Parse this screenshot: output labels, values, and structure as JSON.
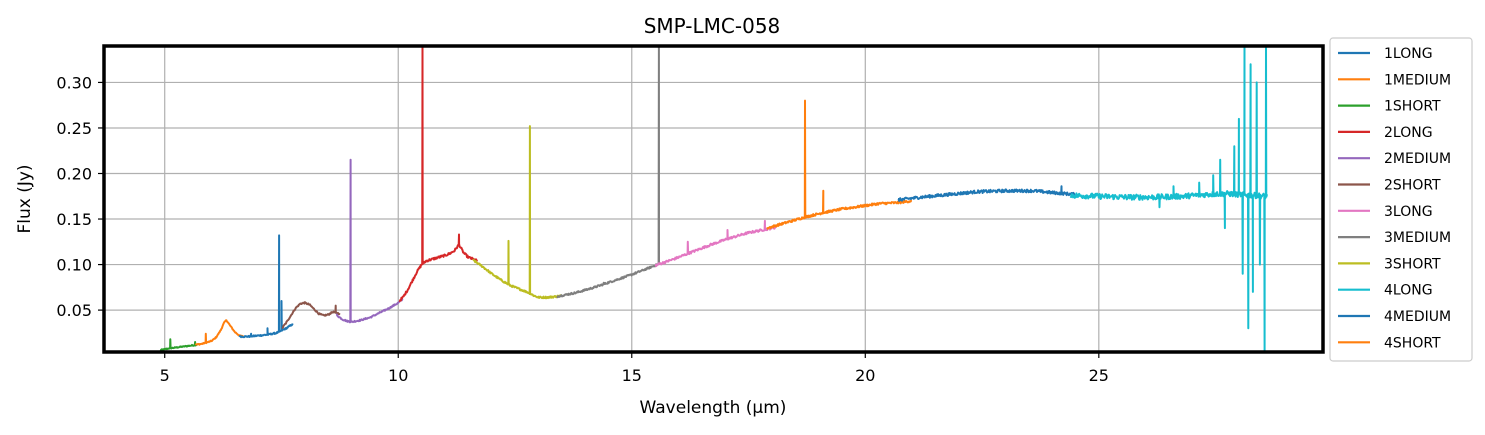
{
  "chart_data": {
    "type": "line",
    "title": "SMP-LMC-058",
    "xlabel": "Wavelength (μm)",
    "ylabel": "Flux (Jy)",
    "xlim": [
      3.7,
      29.8
    ],
    "ylim": [
      0.004,
      0.34
    ],
    "xticks": [
      5,
      10,
      15,
      20,
      25
    ],
    "yticks": [
      0.05,
      0.1,
      0.15,
      0.2,
      0.25,
      0.3
    ],
    "xtick_labels": [
      "5",
      "10",
      "15",
      "20",
      "25"
    ],
    "ytick_labels": [
      "0.05",
      "0.10",
      "0.15",
      "0.20",
      "0.25",
      "0.30"
    ],
    "grid": true,
    "legend_position": "outside-right",
    "series": [
      {
        "name": "1SHORT",
        "color": "#2ca02c",
        "noise": 0.0006,
        "points": [
          [
            4.9,
            0.006
          ],
          [
            5.0,
            0.007
          ],
          [
            5.1,
            0.008
          ],
          [
            5.25,
            0.009
          ],
          [
            5.4,
            0.01
          ],
          [
            5.55,
            0.011
          ],
          [
            5.7,
            0.012
          ]
        ],
        "spikes": [
          [
            5.12,
            0.018
          ],
          [
            5.65,
            0.015
          ]
        ]
      },
      {
        "name": "1MEDIUM",
        "color": "#ff7f0e",
        "noise": 0.0006,
        "points": [
          [
            5.66,
            0.012
          ],
          [
            5.8,
            0.013
          ],
          [
            6.0,
            0.016
          ],
          [
            6.1,
            0.02
          ],
          [
            6.2,
            0.028
          ],
          [
            6.27,
            0.036
          ],
          [
            6.32,
            0.039
          ],
          [
            6.4,
            0.033
          ],
          [
            6.5,
            0.026
          ],
          [
            6.6,
            0.022
          ],
          [
            6.7,
            0.021
          ]
        ],
        "spikes": [
          [
            5.88,
            0.024
          ]
        ]
      },
      {
        "name": "1LONG",
        "color": "#1f77b4",
        "noise": 0.0008,
        "points": [
          [
            6.6,
            0.021
          ],
          [
            6.8,
            0.021
          ],
          [
            7.0,
            0.022
          ],
          [
            7.2,
            0.023
          ],
          [
            7.4,
            0.025
          ],
          [
            7.6,
            0.03
          ],
          [
            7.75,
            0.035
          ]
        ],
        "spikes": [
          [
            6.85,
            0.024
          ],
          [
            7.2,
            0.03
          ],
          [
            7.45,
            0.132
          ],
          [
            7.5,
            0.06
          ]
        ]
      },
      {
        "name": "2SHORT",
        "color": "#8c564b",
        "noise": 0.0008,
        "points": [
          [
            7.51,
            0.03
          ],
          [
            7.6,
            0.036
          ],
          [
            7.7,
            0.044
          ],
          [
            7.8,
            0.052
          ],
          [
            7.9,
            0.057
          ],
          [
            8.0,
            0.058
          ],
          [
            8.1,
            0.056
          ],
          [
            8.2,
            0.051
          ],
          [
            8.3,
            0.046
          ],
          [
            8.4,
            0.044
          ],
          [
            8.5,
            0.045
          ],
          [
            8.6,
            0.048
          ],
          [
            8.75,
            0.046
          ]
        ],
        "spikes": [
          [
            8.66,
            0.055
          ]
        ]
      },
      {
        "name": "2MEDIUM",
        "color": "#9467bd",
        "noise": 0.0008,
        "points": [
          [
            8.67,
            0.045
          ],
          [
            8.8,
            0.04
          ],
          [
            8.9,
            0.038
          ],
          [
            9.0,
            0.037
          ],
          [
            9.2,
            0.039
          ],
          [
            9.4,
            0.042
          ],
          [
            9.6,
            0.047
          ],
          [
            9.8,
            0.052
          ],
          [
            10.0,
            0.058
          ],
          [
            10.1,
            0.062
          ]
        ],
        "spikes": [
          [
            8.98,
            0.215
          ]
        ]
      },
      {
        "name": "2LONG",
        "color": "#d62728",
        "noise": 0.0012,
        "points": [
          [
            10.02,
            0.06
          ],
          [
            10.1,
            0.064
          ],
          [
            10.2,
            0.072
          ],
          [
            10.3,
            0.082
          ],
          [
            10.4,
            0.092
          ],
          [
            10.5,
            0.1
          ],
          [
            10.6,
            0.104
          ],
          [
            10.8,
            0.107
          ],
          [
            11.0,
            0.11
          ],
          [
            11.1,
            0.112
          ],
          [
            11.2,
            0.115
          ],
          [
            11.3,
            0.122
          ],
          [
            11.4,
            0.113
          ],
          [
            11.5,
            0.108
          ],
          [
            11.7,
            0.104
          ]
        ],
        "spikes": [
          [
            10.52,
            0.34
          ],
          [
            11.3,
            0.133
          ]
        ]
      },
      {
        "name": "3SHORT",
        "color": "#bcbd22",
        "noise": 0.001,
        "points": [
          [
            11.6,
            0.105
          ],
          [
            11.8,
            0.098
          ],
          [
            12.0,
            0.09
          ],
          [
            12.2,
            0.083
          ],
          [
            12.4,
            0.077
          ],
          [
            12.6,
            0.073
          ],
          [
            12.8,
            0.069
          ],
          [
            12.9,
            0.066
          ],
          [
            13.0,
            0.064
          ],
          [
            13.2,
            0.064
          ],
          [
            13.4,
            0.065
          ],
          [
            13.5,
            0.066
          ]
        ],
        "spikes": [
          [
            12.36,
            0.126
          ],
          [
            12.82,
            0.252
          ]
        ]
      },
      {
        "name": "3MEDIUM",
        "color": "#7f7f7f",
        "noise": 0.001,
        "points": [
          [
            13.4,
            0.065
          ],
          [
            13.8,
            0.069
          ],
          [
            14.2,
            0.075
          ],
          [
            14.6,
            0.082
          ],
          [
            15.0,
            0.089
          ],
          [
            15.4,
            0.097
          ],
          [
            15.6,
            0.101
          ]
        ],
        "spikes": [
          [
            14.4,
            0.08
          ],
          [
            15.58,
            0.34
          ]
        ]
      },
      {
        "name": "3LONG",
        "color": "#e377c2",
        "noise": 0.0012,
        "points": [
          [
            15.5,
            0.099
          ],
          [
            15.9,
            0.106
          ],
          [
            16.3,
            0.114
          ],
          [
            16.7,
            0.122
          ],
          [
            17.1,
            0.129
          ],
          [
            17.5,
            0.135
          ],
          [
            17.9,
            0.139
          ],
          [
            18.1,
            0.141
          ]
        ],
        "spikes": [
          [
            16.2,
            0.125
          ],
          [
            17.05,
            0.138
          ],
          [
            17.85,
            0.148
          ]
        ]
      },
      {
        "name": "4SHORT",
        "color": "#ff7f0e",
        "noise": 0.0012,
        "points": [
          [
            17.9,
            0.14
          ],
          [
            18.3,
            0.146
          ],
          [
            18.7,
            0.152
          ],
          [
            19.1,
            0.157
          ],
          [
            19.5,
            0.161
          ],
          [
            19.9,
            0.164
          ],
          [
            20.3,
            0.167
          ],
          [
            20.7,
            0.168
          ],
          [
            21.0,
            0.17
          ]
        ],
        "spikes": [
          [
            18.71,
            0.28
          ],
          [
            19.1,
            0.181
          ]
        ]
      },
      {
        "name": "4MEDIUM",
        "color": "#1f77b4",
        "noise": 0.0016,
        "points": [
          [
            20.7,
            0.171
          ],
          [
            21.2,
            0.174
          ],
          [
            21.8,
            0.177
          ],
          [
            22.4,
            0.18
          ],
          [
            23.0,
            0.181
          ],
          [
            23.6,
            0.181
          ],
          [
            24.0,
            0.179
          ],
          [
            24.5,
            0.177
          ]
        ],
        "spikes": [
          [
            24.2,
            0.186
          ]
        ]
      },
      {
        "name": "4LONG",
        "color": "#17becf",
        "noise": 0.003,
        "points": [
          [
            24.4,
            0.176
          ],
          [
            25.0,
            0.175
          ],
          [
            25.6,
            0.174
          ],
          [
            26.2,
            0.174
          ],
          [
            26.8,
            0.175
          ],
          [
            27.3,
            0.177
          ],
          [
            27.7,
            0.178
          ],
          [
            28.0,
            0.177
          ],
          [
            28.3,
            0.176
          ],
          [
            28.6,
            0.175
          ]
        ],
        "spikes": [
          [
            26.3,
            0.163
          ],
          [
            26.6,
            0.186
          ],
          [
            27.15,
            0.19
          ],
          [
            27.45,
            0.198
          ],
          [
            27.6,
            0.215
          ],
          [
            27.7,
            0.14
          ],
          [
            27.9,
            0.23
          ],
          [
            28.0,
            0.26
          ],
          [
            28.08,
            0.09
          ],
          [
            28.12,
            0.34
          ],
          [
            28.2,
            0.03
          ],
          [
            28.25,
            0.32
          ],
          [
            28.3,
            0.07
          ],
          [
            28.38,
            0.3
          ],
          [
            28.45,
            0.1
          ],
          [
            28.55,
            0.005
          ],
          [
            28.58,
            0.34
          ]
        ]
      }
    ]
  },
  "legend": {
    "order": [
      "1LONG",
      "1MEDIUM",
      "1SHORT",
      "2LONG",
      "2MEDIUM",
      "2SHORT",
      "3LONG",
      "3MEDIUM",
      "3SHORT",
      "4LONG",
      "4MEDIUM",
      "4SHORT"
    ]
  }
}
